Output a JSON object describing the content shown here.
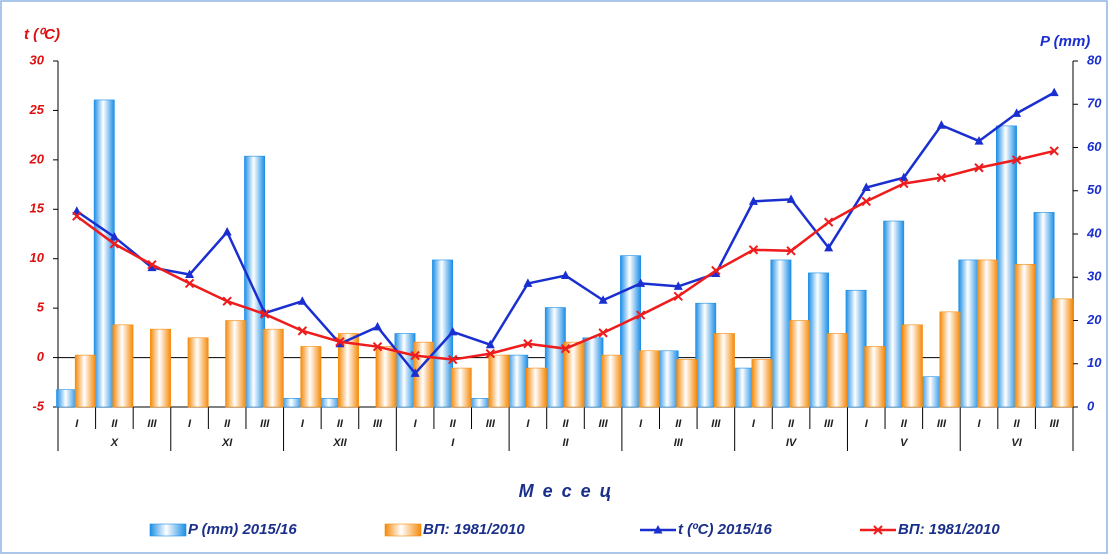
{
  "chart_data": {
    "type": "combo",
    "y_label": "t (⁰C)",
    "y2_label": "P (mm)",
    "x_label": "М е с е ц",
    "categories": [
      "I",
      "II",
      "III",
      "I",
      "II",
      "III",
      "I",
      "II",
      "III",
      "I",
      "II",
      "III",
      "I",
      "II",
      "III",
      "I",
      "II",
      "III",
      "I",
      "II",
      "III",
      "I",
      "II",
      "III",
      "I",
      "II",
      "III"
    ],
    "groups": [
      "X",
      "XI",
      "XII",
      "I",
      "II",
      "III",
      "IV",
      "V",
      "VI"
    ],
    "ylim": [
      -5,
      30
    ],
    "yticks": [
      -5,
      0,
      5,
      10,
      15,
      20,
      25,
      30
    ],
    "y2lim": [
      0,
      80
    ],
    "y2ticks": [
      0,
      10,
      20,
      30,
      40,
      50,
      60,
      70,
      80
    ],
    "series": [
      {
        "name": "P (mm) 2015/16",
        "type": "bar",
        "axis": "y2",
        "color": "#1c8ee6",
        "values": [
          4,
          71,
          0,
          0,
          0,
          58,
          2,
          2,
          0,
          17,
          34,
          2,
          12,
          23,
          16,
          35,
          13,
          24,
          9,
          34,
          31,
          27,
          43,
          7,
          34,
          65,
          45
        ]
      },
      {
        "name": "ВП: 1981/2010",
        "type": "bar",
        "axis": "y2",
        "color": "#f58a0a",
        "values": [
          12,
          19,
          18,
          16,
          20,
          18,
          14,
          17,
          14,
          15,
          9,
          12,
          9,
          15,
          12,
          13,
          11,
          17,
          11,
          20,
          17,
          14,
          19,
          22,
          34,
          33,
          25
        ]
      },
      {
        "name": "t (ºC) 2015/16",
        "type": "line",
        "axis": "y",
        "color": "#1a2fd0",
        "marker": "triangle",
        "values": [
          14.8,
          12.2,
          9.1,
          8.4,
          12.7,
          4.5,
          5.7,
          1.4,
          3.1,
          -1.6,
          2.6,
          1.3,
          7.5,
          8.3,
          5.8,
          7.5,
          7.2,
          8.5,
          15.8,
          16.0,
          11.1,
          17.2,
          18.2,
          23.5,
          21.9,
          24.7,
          26.8
        ]
      },
      {
        "name": "ВП: 1981/2010",
        "type": "line",
        "axis": "y",
        "color": "#ee1c1c",
        "marker": "x",
        "values": [
          14.3,
          11.5,
          9.4,
          7.5,
          5.7,
          4.4,
          2.7,
          1.6,
          1.1,
          0.2,
          -0.2,
          0.4,
          1.4,
          0.9,
          2.5,
          4.3,
          6.2,
          8.8,
          10.9,
          10.8,
          13.7,
          15.8,
          17.6,
          18.2,
          19.2,
          20.0,
          20.9
        ]
      }
    ]
  }
}
